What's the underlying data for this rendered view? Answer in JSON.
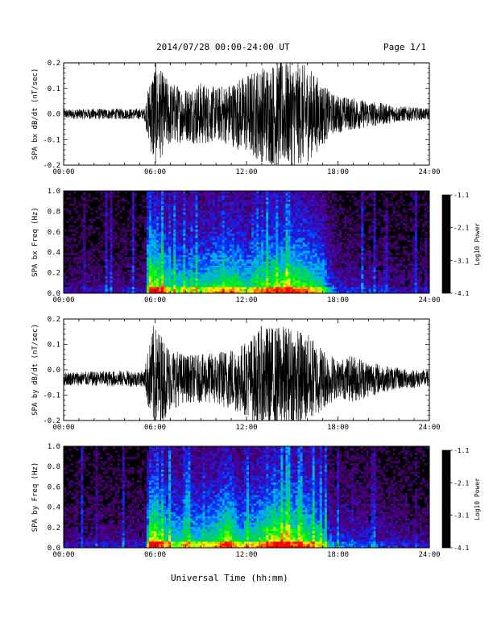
{
  "header": {
    "title": "2014/07/28  00:00-24:00 UT",
    "page": "Page 1/1"
  },
  "xaxis_title": "Universal Time (hh:mm)",
  "chart_data": [
    {
      "type": "line",
      "ylabel": "SPA bx dB/dt (nT/sec)",
      "ylim": [
        -0.2,
        0.2
      ],
      "yticks": [
        "0.2",
        "0.1",
        "0.0",
        "-0.1",
        "-0.2"
      ],
      "xticks": [
        "00:00",
        "06:00",
        "12:00",
        "18:00",
        "24:00"
      ],
      "xlim_hours": [
        0,
        24
      ],
      "color": "#000000",
      "envelope": {
        "hours": [
          0,
          2,
          4,
          5.3,
          5.5,
          5.9,
          6.3,
          7,
          8,
          9,
          10,
          11,
          12,
          13,
          14,
          15,
          16,
          17,
          17.5,
          18,
          19,
          20,
          21,
          22,
          23,
          24
        ],
        "amplitude": [
          0.018,
          0.02,
          0.02,
          0.02,
          0.08,
          0.2,
          0.17,
          0.12,
          0.1,
          0.12,
          0.1,
          0.12,
          0.15,
          0.18,
          0.2,
          0.2,
          0.18,
          0.12,
          0.08,
          0.07,
          0.06,
          0.05,
          0.04,
          0.03,
          0.025,
          0.02
        ]
      },
      "grid": false
    },
    {
      "type": "heatmap",
      "ylabel": "SPA bx Freq (Hz)",
      "ylim": [
        0,
        1.0
      ],
      "yticks": [
        "1.0",
        "0.8",
        "0.6",
        "0.4",
        "0.2",
        "0.0"
      ],
      "xticks": [
        "00:00",
        "06:00",
        "12:00",
        "18:00",
        "24:00"
      ],
      "xlim_hours": [
        0,
        24
      ],
      "colorbar": {
        "label": "Log10 Power",
        "range": [
          -4.1,
          -1.1
        ],
        "ticks": [
          "-1.1",
          "-2.1",
          "-3.1",
          "-4.1"
        ],
        "colors": [
          "#000000",
          "#3a0050",
          "#4b00a0",
          "#0030ff",
          "#00b0ff",
          "#00d060",
          "#00ff00",
          "#ffff00",
          "#ff8000",
          "#ff0000"
        ]
      },
      "activity": {
        "hours": [
          0,
          3,
          5.4,
          5.6,
          6,
          7,
          9,
          10,
          11,
          12,
          13,
          14,
          15,
          16,
          17,
          17.4,
          18,
          20,
          22,
          24
        ],
        "level": [
          0.12,
          0.15,
          0.15,
          0.6,
          0.65,
          0.45,
          0.45,
          0.5,
          0.55,
          0.45,
          0.5,
          0.6,
          0.6,
          0.55,
          0.45,
          0.3,
          0.2,
          0.18,
          0.15,
          0.12
        ]
      }
    },
    {
      "type": "line",
      "ylabel": "SPA by dB/dt (nT/sec)",
      "ylim": [
        -0.2,
        0.2
      ],
      "yticks": [
        "0.2",
        "0.1",
        "0.0",
        "-0.1",
        "-0.2"
      ],
      "xticks": [
        "00:00",
        "06:00",
        "12:00",
        "18:00",
        "24:00"
      ],
      "xlim_hours": [
        0,
        24
      ],
      "color": "#000000",
      "baseline": -0.035,
      "envelope": {
        "hours": [
          0,
          2,
          4,
          5.3,
          5.5,
          5.9,
          6.3,
          7,
          8,
          9,
          10,
          11,
          12,
          13,
          14,
          15,
          16,
          17,
          18,
          19,
          20,
          21,
          22,
          23,
          24
        ],
        "amplitude": [
          0.025,
          0.028,
          0.03,
          0.03,
          0.1,
          0.2,
          0.18,
          0.12,
          0.09,
          0.09,
          0.1,
          0.12,
          0.14,
          0.2,
          0.2,
          0.2,
          0.17,
          0.12,
          0.07,
          0.09,
          0.07,
          0.05,
          0.04,
          0.035,
          0.03
        ]
      },
      "grid": false
    },
    {
      "type": "heatmap",
      "ylabel": "SPA by Freq (Hz)",
      "ylim": [
        0,
        1.0
      ],
      "yticks": [
        "1.0",
        "0.8",
        "0.6",
        "0.4",
        "0.2",
        "0.0"
      ],
      "xticks": [
        "00:00",
        "06:00",
        "12:00",
        "18:00",
        "24:00"
      ],
      "xlim_hours": [
        0,
        24
      ],
      "colorbar": {
        "label": "Log10 Power",
        "range": [
          -4.1,
          -1.1
        ],
        "ticks": [
          "-1.1",
          "-2.1",
          "-3.1",
          "-4.1"
        ],
        "colors": [
          "#000000",
          "#3a0050",
          "#4b00a0",
          "#0030ff",
          "#00b0ff",
          "#00d060",
          "#00ff00",
          "#ffff00",
          "#ff8000",
          "#ff0000"
        ]
      },
      "activity": {
        "hours": [
          0,
          3,
          5.4,
          5.6,
          6,
          7,
          9,
          10,
          10.8,
          11.5,
          12,
          13,
          14,
          15,
          16,
          17,
          17.4,
          18,
          20,
          22,
          24
        ],
        "level": [
          0.14,
          0.16,
          0.16,
          0.65,
          0.65,
          0.45,
          0.45,
          0.5,
          0.65,
          0.45,
          0.45,
          0.55,
          0.65,
          0.6,
          0.55,
          0.45,
          0.3,
          0.25,
          0.22,
          0.18,
          0.15
        ]
      }
    }
  ]
}
